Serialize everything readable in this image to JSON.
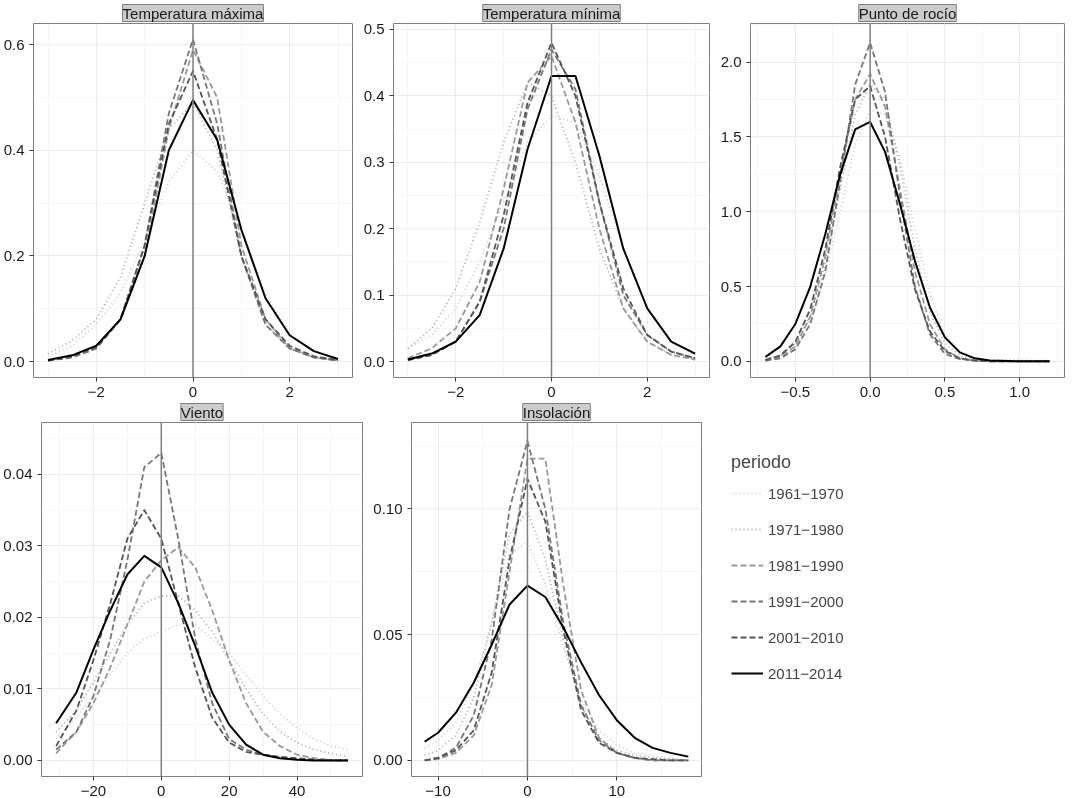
{
  "chart_data": [
    {
      "type": "line",
      "title": "Temperatura máxima",
      "grid": true,
      "xlim": [
        -3.3,
        3.3
      ],
      "ylim": [
        -0.03,
        0.64
      ],
      "xticks": [
        {
          "value": -2,
          "label": "−2"
        },
        0,
        2
      ],
      "yticks": [
        {
          "value": 0,
          "label": "0.0"
        },
        0.2,
        0.4,
        0.6
      ],
      "ref_lines": [
        {
          "axis": "x",
          "value": 0,
          "color": "#7f7f7f"
        }
      ],
      "x": [
        -3,
        -2.5,
        -2,
        -1.5,
        -1,
        -0.5,
        0,
        0.5,
        1,
        1.5,
        2,
        2.5,
        3
      ],
      "series": [
        {
          "color": "#cccccc",
          "line_style": "dotted",
          "values": [
            0.01,
            0.03,
            0.07,
            0.13,
            0.23,
            0.34,
            0.4,
            0.36,
            0.25,
            0.13,
            0.05,
            0.02,
            0.005
          ]
        },
        {
          "color": "#aaaaaa",
          "line_style": "dotted",
          "values": [
            0.015,
            0.04,
            0.08,
            0.16,
            0.3,
            0.44,
            0.49,
            0.4,
            0.2,
            0.07,
            0.025,
            0.01,
            0.003
          ]
        },
        {
          "color": "#999999",
          "line_style": "dashed",
          "values": [
            0.002,
            0.008,
            0.025,
            0.08,
            0.2,
            0.44,
            0.59,
            0.5,
            0.22,
            0.08,
            0.025,
            0.008,
            0.002
          ]
        },
        {
          "color": "#777777",
          "line_style": "dashed",
          "values": [
            0.002,
            0.008,
            0.025,
            0.08,
            0.22,
            0.47,
            0.61,
            0.45,
            0.2,
            0.07,
            0.025,
            0.008,
            0.002
          ]
        },
        {
          "color": "#555555",
          "line_style": "dashed",
          "values": [
            0.002,
            0.01,
            0.028,
            0.08,
            0.22,
            0.45,
            0.55,
            0.42,
            0.2,
            0.08,
            0.03,
            0.01,
            0.003
          ]
        },
        {
          "color": "#000000",
          "line_style": "solid",
          "values": [
            0.003,
            0.012,
            0.03,
            0.08,
            0.2,
            0.4,
            0.495,
            0.42,
            0.25,
            0.12,
            0.05,
            0.02,
            0.005
          ]
        }
      ]
    },
    {
      "type": "line",
      "title": "Temperatura mínima",
      "grid": true,
      "xlim": [
        -3.3,
        3.3
      ],
      "ylim": [
        -0.024,
        0.509
      ],
      "xticks": [
        {
          "value": -2,
          "label": "−2"
        },
        0,
        2
      ],
      "yticks": [
        {
          "value": 0,
          "label": "0.0"
        },
        0.1,
        0.2,
        0.3,
        0.4,
        0.5
      ],
      "ref_lines": [
        {
          "axis": "x",
          "value": 0,
          "color": "#7f7f7f"
        }
      ],
      "x": [
        -3,
        -2.5,
        -2,
        -1.5,
        -1,
        -0.5,
        0,
        0.5,
        1,
        1.5,
        2,
        2.5,
        3
      ],
      "series": [
        {
          "color": "#cccccc",
          "line_style": "dotted",
          "values": [
            0.02,
            0.04,
            0.08,
            0.15,
            0.24,
            0.33,
            0.37,
            0.36,
            0.28,
            0.17,
            0.08,
            0.03,
            0.01
          ]
        },
        {
          "color": "#aaaaaa",
          "line_style": "dotted",
          "values": [
            0.02,
            0.05,
            0.11,
            0.21,
            0.33,
            0.42,
            0.4,
            0.3,
            0.17,
            0.08,
            0.03,
            0.01,
            0.003
          ]
        },
        {
          "color": "#999999",
          "line_style": "dashed",
          "values": [
            0.005,
            0.02,
            0.05,
            0.12,
            0.26,
            0.42,
            0.46,
            0.36,
            0.2,
            0.08,
            0.03,
            0.01,
            0.003
          ]
        },
        {
          "color": "#777777",
          "line_style": "dashed",
          "values": [
            0.002,
            0.01,
            0.03,
            0.09,
            0.2,
            0.38,
            0.47,
            0.41,
            0.24,
            0.1,
            0.04,
            0.015,
            0.005
          ]
        },
        {
          "color": "#555555",
          "line_style": "dashed",
          "values": [
            0.002,
            0.01,
            0.03,
            0.09,
            0.22,
            0.39,
            0.48,
            0.4,
            0.24,
            0.11,
            0.04,
            0.015,
            0.005
          ]
        },
        {
          "color": "#000000",
          "line_style": "solid",
          "values": [
            0.003,
            0.012,
            0.03,
            0.07,
            0.17,
            0.32,
            0.43,
            0.43,
            0.31,
            0.17,
            0.08,
            0.03,
            0.012
          ]
        }
      ]
    },
    {
      "type": "line",
      "title": "Punto de rocío",
      "grid": true,
      "xlim": [
        -0.8,
        1.3
      ],
      "ylim": [
        -0.108,
        2.258
      ],
      "xticks": [
        {
          "value": -0.5,
          "label": "−0.5"
        },
        {
          "value": 0,
          "label": "0.0"
        },
        0.5,
        {
          "value": 1,
          "label": "1.0"
        }
      ],
      "yticks": [
        {
          "value": 0,
          "label": "0.0"
        },
        0.5,
        {
          "value": 1,
          "label": "1.0"
        },
        1.5,
        {
          "value": 2,
          "label": "2.0"
        }
      ],
      "ref_lines": [
        {
          "axis": "x",
          "value": 0,
          "color": "#7f7f7f"
        }
      ],
      "x": [
        -0.7,
        -0.6,
        -0.5,
        -0.4,
        -0.3,
        -0.2,
        -0.1,
        0,
        0.1,
        0.2,
        0.3,
        0.4,
        0.5,
        0.6,
        0.7,
        0.8,
        1.0,
        1.2
      ],
      "series": [
        {
          "color": "#cccccc",
          "line_style": "dotted",
          "values": [
            0.01,
            0.04,
            0.12,
            0.28,
            0.58,
            1.0,
            1.45,
            1.68,
            1.65,
            1.35,
            0.88,
            0.45,
            0.18,
            0.06,
            0.02,
            0.01,
            0.01,
            0.005
          ]
        },
        {
          "color": "#aaaaaa",
          "line_style": "dotted",
          "values": [
            0.01,
            0.04,
            0.12,
            0.3,
            0.65,
            1.15,
            1.65,
            1.85,
            1.75,
            1.3,
            0.75,
            0.33,
            0.12,
            0.04,
            0.01,
            0.005,
            0,
            0
          ]
        },
        {
          "color": "#999999",
          "line_style": "dashed",
          "values": [
            0.005,
            0.03,
            0.1,
            0.3,
            0.7,
            1.25,
            1.75,
            1.92,
            1.7,
            1.15,
            0.6,
            0.25,
            0.08,
            0.02,
            0.005,
            0,
            0,
            0
          ]
        },
        {
          "color": "#777777",
          "line_style": "dashed",
          "values": [
            0.005,
            0.02,
            0.08,
            0.25,
            0.6,
            1.2,
            1.85,
            2.13,
            1.8,
            1.1,
            0.5,
            0.18,
            0.05,
            0.015,
            0.005,
            0,
            0,
            0
          ]
        },
        {
          "color": "#555555",
          "line_style": "dashed",
          "values": [
            0.01,
            0.04,
            0.13,
            0.35,
            0.75,
            1.3,
            1.75,
            1.84,
            1.5,
            0.95,
            0.48,
            0.2,
            0.07,
            0.02,
            0.005,
            0,
            0,
            0
          ]
        },
        {
          "color": "#000000",
          "line_style": "solid",
          "values": [
            0.03,
            0.1,
            0.25,
            0.5,
            0.85,
            1.25,
            1.55,
            1.6,
            1.4,
            1.05,
            0.67,
            0.36,
            0.16,
            0.06,
            0.02,
            0.005,
            0,
            0
          ]
        }
      ]
    },
    {
      "type": "line",
      "title": "Viento",
      "grid": true,
      "xlim": [
        -35.3,
        59.3
      ],
      "ylim": [
        -0.00225,
        0.04725
      ],
      "xticks": [
        {
          "value": -20,
          "label": "−20"
        },
        0,
        20,
        40
      ],
      "yticks": [
        {
          "value": 0,
          "label": "0.00"
        },
        0.01,
        0.02,
        0.03,
        0.04
      ],
      "ref_lines": [
        {
          "axis": "x",
          "value": 0,
          "color": "#7f7f7f"
        }
      ],
      "x": [
        -31,
        -25,
        -20,
        -15,
        -10,
        -5,
        0,
        5,
        10,
        15,
        20,
        25,
        30,
        35,
        40,
        45,
        50,
        55
      ],
      "series": [
        {
          "color": "#cccccc",
          "line_style": "dotted",
          "values": [
            0.003,
            0.006,
            0.009,
            0.012,
            0.015,
            0.017,
            0.018,
            0.019,
            0.019,
            0.017,
            0.015,
            0.012,
            0.009,
            0.0065,
            0.0045,
            0.003,
            0.002,
            0.0015
          ]
        },
        {
          "color": "#aaaaaa",
          "line_style": "dotted",
          "values": [
            0.004,
            0.007,
            0.011,
            0.015,
            0.019,
            0.022,
            0.023,
            0.023,
            0.021,
            0.018,
            0.014,
            0.01,
            0.0065,
            0.004,
            0.0025,
            0.0015,
            0.001,
            0.0005
          ]
        },
        {
          "color": "#999999",
          "line_style": "dashed",
          "values": [
            0.001,
            0.004,
            0.008,
            0.013,
            0.019,
            0.025,
            0.028,
            0.0298,
            0.027,
            0.021,
            0.014,
            0.008,
            0.004,
            0.002,
            0.0008,
            0.0003,
            0.0001,
            0
          ]
        },
        {
          "color": "#777777",
          "line_style": "dashed",
          "values": [
            0.0015,
            0.004,
            0.009,
            0.017,
            0.028,
            0.041,
            0.043,
            0.031,
            0.017,
            0.008,
            0.003,
            0.0015,
            0.0008,
            0.0004,
            0.0002,
            0.0001,
            0,
            0
          ]
        },
        {
          "color": "#555555",
          "line_style": "dashed",
          "values": [
            0.002,
            0.007,
            0.014,
            0.022,
            0.031,
            0.035,
            0.031,
            0.022,
            0.013,
            0.006,
            0.0025,
            0.0012,
            0.0008,
            0.0005,
            0.0003,
            0.0001,
            0,
            0
          ]
        },
        {
          "color": "#000000",
          "line_style": "solid",
          "values": [
            0.0052,
            0.0095,
            0.0155,
            0.021,
            0.026,
            0.0286,
            0.027,
            0.022,
            0.016,
            0.0095,
            0.005,
            0.0022,
            0.0008,
            0.0003,
            0.0001,
            0,
            0,
            0
          ]
        }
      ]
    },
    {
      "type": "line",
      "title": "Insolación",
      "grid": true,
      "xlim": [
        -12.975,
        19.475
      ],
      "ylim": [
        -0.0064,
        0.1344
      ],
      "xticks": [
        {
          "value": -10,
          "label": "−10"
        },
        0,
        10
      ],
      "yticks": [
        {
          "value": 0,
          "label": "0.00"
        },
        0.05,
        {
          "value": 0.1,
          "label": "0.10"
        }
      ],
      "ref_lines": [
        {
          "axis": "x",
          "value": 0,
          "color": "#7f7f7f"
        }
      ],
      "legend": "right",
      "legend_title": "periodo",
      "x": [
        -11.5,
        -10,
        -8,
        -6,
        -4,
        -2,
        0,
        2,
        4,
        6,
        8,
        10,
        12,
        14,
        16,
        18
      ],
      "series": [
        {
          "name": "1961−1970",
          "color": "#cccccc",
          "line_style": "dotted",
          "values": [
            0.005,
            0.008,
            0.015,
            0.03,
            0.055,
            0.082,
            0.087,
            0.07,
            0.045,
            0.024,
            0.012,
            0.006,
            0.003,
            0.0015,
            0.001,
            0
          ]
        },
        {
          "name": "1971−1980",
          "color": "#aaaaaa",
          "line_style": "dotted",
          "values": [
            0.002,
            0.004,
            0.01,
            0.025,
            0.055,
            0.09,
            0.099,
            0.08,
            0.048,
            0.022,
            0.009,
            0.004,
            0.002,
            0.001,
            0.0005,
            0
          ]
        },
        {
          "name": "1981−1990",
          "color": "#999999",
          "line_style": "dashed",
          "values": [
            0,
            0.0005,
            0.003,
            0.01,
            0.03,
            0.075,
            0.12,
            0.12,
            0.07,
            0.028,
            0.009,
            0.003,
            0.001,
            0,
            0,
            0
          ]
        },
        {
          "name": "1991−2000",
          "color": "#777777",
          "line_style": "dashed",
          "values": [
            0,
            0.001,
            0.005,
            0.018,
            0.048,
            0.1,
            0.127,
            0.1,
            0.055,
            0.022,
            0.008,
            0.003,
            0.001,
            0,
            0,
            0
          ]
        },
        {
          "name": "2001−2010",
          "color": "#555555",
          "line_style": "dashed",
          "values": [
            0,
            0.001,
            0.004,
            0.012,
            0.035,
            0.08,
            0.112,
            0.095,
            0.052,
            0.02,
            0.007,
            0.003,
            0.001,
            0.0005,
            0,
            0
          ]
        },
        {
          "name": "2011−2014",
          "color": "#000000",
          "line_style": "solid",
          "values": [
            0.0075,
            0.011,
            0.019,
            0.031,
            0.046,
            0.062,
            0.0695,
            0.065,
            0.053,
            0.039,
            0.026,
            0.016,
            0.009,
            0.005,
            0.003,
            0.0015
          ]
        }
      ]
    }
  ]
}
